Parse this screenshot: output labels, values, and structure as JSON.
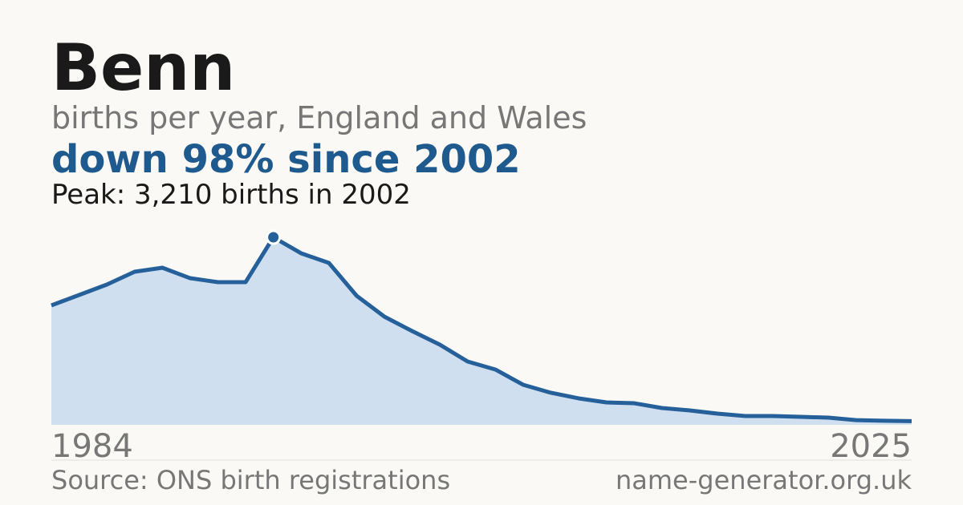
{
  "chart_data": {
    "type": "area",
    "title": "Benn",
    "subtitle": "births per year, England and Wales",
    "headline": "down 98% since 2002",
    "peak_label": "Peak: 3,210 births in 2002",
    "source": "Source: ONS birth registrations",
    "site": "name-generator.org.uk",
    "categories": [
      "1984",
      null,
      null,
      null,
      null,
      null,
      null,
      null,
      null,
      null,
      null,
      null,
      null,
      null,
      null,
      null,
      null,
      null,
      null,
      null,
      null,
      null,
      null,
      null,
      null,
      null,
      null,
      null,
      null,
      null,
      null,
      "2025"
    ],
    "values": [
      2044,
      2222,
      2401,
      2620,
      2689,
      2510,
      2442,
      2442,
      3210,
      2936,
      2771,
      2209,
      1852,
      1605,
      1372,
      1084,
      947,
      686,
      549,
      453,
      384,
      370,
      288,
      247,
      192,
      151,
      151,
      137,
      123,
      80,
      70,
      64
    ],
    "ylim": [
      0,
      3210
    ],
    "color": "#25609a",
    "fill": "#d0dff0"
  }
}
